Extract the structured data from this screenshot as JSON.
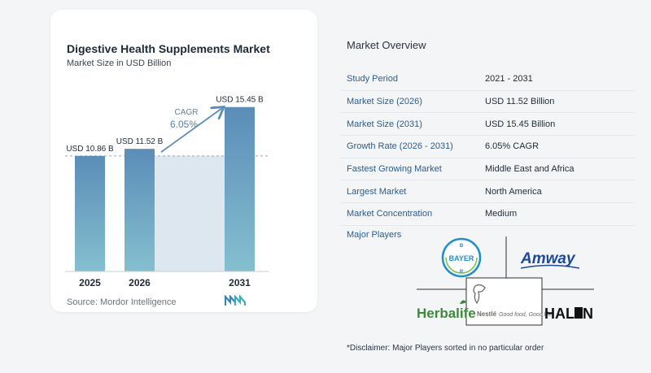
{
  "header": {
    "title": "Digestive Health Supplements Market",
    "subtitle": "Market Size in USD Billion"
  },
  "chart_data": {
    "type": "bar",
    "categories": [
      "2025",
      "2026",
      "2031"
    ],
    "values": [
      10.86,
      11.52,
      15.45
    ],
    "data_labels": [
      "USD 10.86 B",
      "USD 11.52 B",
      "USD 15.45 B"
    ],
    "cagr_label": "CAGR",
    "cagr_value": "6.05%",
    "ylim": [
      0,
      16.5
    ],
    "reference_line_value": 10.86,
    "colors": {
      "bar_top": "#5b8db8",
      "bar_bottom": "#85bfcf",
      "shade": "#dde7f0",
      "arrow": "#5b8db8"
    }
  },
  "source": {
    "text": "Source:  Mordor Intelligence",
    "logo_icon": "mordor-intelligence-logo"
  },
  "overview": {
    "title": "Market Overview",
    "rows": [
      {
        "label": "Study Period",
        "value": "2021 - 2031"
      },
      {
        "label": "Market Size (2026)",
        "value": "USD 11.52 Billion"
      },
      {
        "label": "Market Size (2031)",
        "value": "USD 15.45 Billion"
      },
      {
        "label": "Growth Rate (2026 - 2031)",
        "value": "6.05% CAGR"
      },
      {
        "label": "Fastest Growing Market",
        "value": "Middle East and Africa"
      },
      {
        "label": "Largest Market",
        "value": "North America"
      },
      {
        "label": "Market Concentration",
        "value": "Medium"
      }
    ],
    "players_label": "Major Players",
    "players": [
      {
        "name": "BAYER",
        "icon": "bayer-logo"
      },
      {
        "name": "Amway",
        "icon": "amway-logo"
      },
      {
        "name": "Herbalife",
        "icon": "herbalife-logo"
      },
      {
        "name": "Nestlé",
        "tagline": "Good food, Good life",
        "icon": "nestle-logo"
      },
      {
        "name": "HALEON",
        "icon": "haleon-logo"
      }
    ]
  },
  "disclaimer": "*Disclaimer: Major Players sorted in no particular order"
}
